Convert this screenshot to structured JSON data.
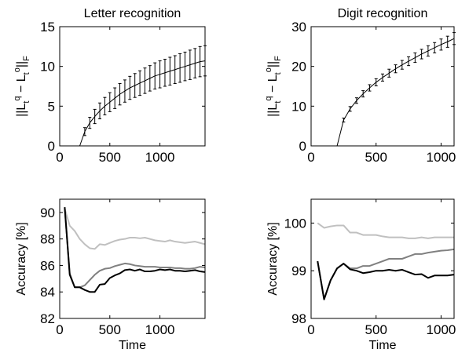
{
  "chart_data": [
    {
      "type": "line",
      "title": "Letter recognition",
      "xlabel": "",
      "ylabel": "||L_t^q − L_t^o||_F",
      "xlim": [
        0,
        1450
      ],
      "ylim": [
        0,
        15
      ],
      "xticks": [
        0,
        500,
        1000
      ],
      "yticks": [
        0,
        5,
        10,
        15
      ],
      "grid": false,
      "series": [
        {
          "style": "black-line-with-error-bars",
          "x": [
            0,
            200,
            250,
            300,
            350,
            400,
            450,
            500,
            550,
            600,
            650,
            700,
            750,
            800,
            850,
            900,
            950,
            1000,
            1050,
            1100,
            1150,
            1200,
            1250,
            1300,
            1350,
            1400,
            1450
          ],
          "y": [
            0,
            0,
            1.8,
            2.9,
            3.7,
            4.4,
            5.0,
            5.5,
            6.0,
            6.5,
            6.9,
            7.3,
            7.6,
            7.9,
            8.2,
            8.5,
            8.8,
            9.0,
            9.2,
            9.4,
            9.6,
            9.8,
            10.0,
            10.2,
            10.4,
            10.6,
            10.7
          ],
          "err": [
            0,
            0,
            0.5,
            0.7,
            0.9,
            1.0,
            1.1,
            1.2,
            1.3,
            1.35,
            1.4,
            1.45,
            1.5,
            1.55,
            1.6,
            1.6,
            1.65,
            1.7,
            1.7,
            1.75,
            1.75,
            1.8,
            1.8,
            1.85,
            1.85,
            1.9,
            1.9
          ]
        }
      ]
    },
    {
      "type": "line",
      "title": "Digit recognition",
      "xlabel": "",
      "ylabel": "||L_t^q − L_t^o||_F",
      "xlim": [
        0,
        1100
      ],
      "ylim": [
        0,
        30
      ],
      "xticks": [
        0,
        500,
        1000
      ],
      "yticks": [
        0,
        10,
        20,
        30
      ],
      "grid": false,
      "series": [
        {
          "style": "black-line-with-error-bars",
          "x": [
            0,
            200,
            250,
            300,
            350,
            400,
            450,
            500,
            550,
            600,
            650,
            700,
            750,
            800,
            850,
            900,
            950,
            1000,
            1050,
            1100
          ],
          "y": [
            0,
            0,
            6.5,
            9.3,
            11.4,
            13.1,
            14.6,
            16.0,
            17.2,
            18.3,
            19.4,
            20.4,
            21.3,
            22.2,
            23.1,
            23.9,
            24.7,
            25.5,
            26.2,
            27.0
          ],
          "err": [
            0,
            0,
            0.5,
            0.6,
            0.7,
            0.8,
            0.8,
            0.9,
            0.9,
            1.0,
            1.0,
            1.1,
            1.1,
            1.2,
            1.2,
            1.3,
            1.3,
            1.4,
            1.4,
            1.5
          ]
        }
      ]
    },
    {
      "type": "line",
      "title": "",
      "xlabel": "Time",
      "ylabel": "Accuracy [%]",
      "xlim": [
        0,
        1450
      ],
      "ylim": [
        82,
        91
      ],
      "xticks": [
        0,
        500,
        1000
      ],
      "yticks": [
        82,
        84,
        86,
        88,
        90
      ],
      "grid": false,
      "series": [
        {
          "color": "#c0c0c0",
          "x": [
            50,
            100,
            150,
            200,
            250,
            300,
            350,
            400,
            450,
            500,
            550,
            600,
            650,
            700,
            750,
            800,
            850,
            900,
            950,
            1000,
            1050,
            1100,
            1150,
            1200,
            1250,
            1300,
            1350,
            1400,
            1450
          ],
          "y": [
            90.3,
            89.0,
            88.6,
            88.0,
            87.6,
            87.3,
            87.25,
            87.6,
            87.55,
            87.7,
            87.85,
            87.95,
            88.0,
            88.1,
            88.1,
            88.05,
            88.1,
            88.0,
            87.9,
            87.85,
            87.8,
            87.9,
            87.8,
            87.75,
            87.7,
            87.75,
            87.8,
            87.7,
            87.6
          ]
        },
        {
          "color": "#808080",
          "x": [
            50,
            100,
            150,
            200,
            250,
            300,
            350,
            400,
            450,
            500,
            550,
            600,
            650,
            700,
            750,
            800,
            850,
            900,
            950,
            1000,
            1050,
            1100,
            1150,
            1200,
            1250,
            1300,
            1350,
            1400,
            1450
          ],
          "y": [
            90.3,
            85.4,
            84.35,
            84.35,
            84.5,
            84.9,
            85.3,
            85.6,
            85.75,
            85.8,
            85.95,
            86.05,
            86.15,
            86.1,
            86.0,
            85.95,
            85.9,
            85.9,
            85.9,
            85.85,
            85.85,
            85.85,
            85.8,
            85.8,
            85.75,
            85.75,
            85.8,
            85.9,
            85.85
          ]
        },
        {
          "color": "#000000",
          "x": [
            50,
            100,
            150,
            200,
            250,
            300,
            350,
            400,
            450,
            500,
            550,
            600,
            650,
            700,
            750,
            800,
            850,
            900,
            950,
            1000,
            1050,
            1100,
            1150,
            1200,
            1250,
            1300,
            1350,
            1400,
            1450
          ],
          "y": [
            90.4,
            85.3,
            84.35,
            84.35,
            84.15,
            84.0,
            84.0,
            84.55,
            84.6,
            85.05,
            85.25,
            85.4,
            85.65,
            85.7,
            85.6,
            85.7,
            85.55,
            85.55,
            85.6,
            85.7,
            85.65,
            85.7,
            85.6,
            85.6,
            85.55,
            85.6,
            85.65,
            85.55,
            85.5
          ]
        }
      ]
    },
    {
      "type": "line",
      "title": "",
      "xlabel": "Time",
      "ylabel": "Accuracy [%]",
      "xlim": [
        0,
        1100
      ],
      "ylim": [
        98,
        100.5
      ],
      "xticks": [
        0,
        500,
        1000
      ],
      "yticks": [
        98,
        99,
        100
      ],
      "grid": false,
      "series": [
        {
          "color": "#c0c0c0",
          "x": [
            50,
            100,
            150,
            200,
            250,
            300,
            350,
            400,
            450,
            500,
            550,
            600,
            650,
            700,
            750,
            800,
            850,
            900,
            950,
            1000,
            1050,
            1100
          ],
          "y": [
            100.0,
            99.9,
            99.93,
            99.95,
            99.95,
            99.8,
            99.8,
            99.75,
            99.75,
            99.75,
            99.72,
            99.7,
            99.7,
            99.7,
            99.68,
            99.68,
            99.7,
            99.68,
            99.7,
            99.7,
            99.7,
            99.7
          ]
        },
        {
          "color": "#808080",
          "x": [
            50,
            100,
            150,
            200,
            250,
            300,
            350,
            400,
            450,
            500,
            550,
            600,
            650,
            700,
            750,
            800,
            850,
            900,
            950,
            1000,
            1050,
            1100
          ],
          "y": [
            99.2,
            98.4,
            98.8,
            99.05,
            99.15,
            99.05,
            99.05,
            99.1,
            99.1,
            99.15,
            99.2,
            99.25,
            99.25,
            99.25,
            99.3,
            99.35,
            99.35,
            99.38,
            99.4,
            99.42,
            99.43,
            99.45
          ]
        },
        {
          "color": "#000000",
          "x": [
            50,
            100,
            150,
            200,
            250,
            300,
            350,
            400,
            450,
            500,
            550,
            600,
            650,
            700,
            750,
            800,
            850,
            900,
            950,
            1000,
            1050,
            1100
          ],
          "y": [
            99.2,
            98.4,
            98.8,
            99.05,
            99.15,
            99.03,
            99.0,
            98.95,
            98.97,
            99.0,
            99.0,
            99.02,
            99.0,
            99.02,
            98.97,
            98.92,
            98.93,
            98.85,
            98.9,
            98.9,
            98.9,
            98.92
          ]
        }
      ]
    }
  ]
}
